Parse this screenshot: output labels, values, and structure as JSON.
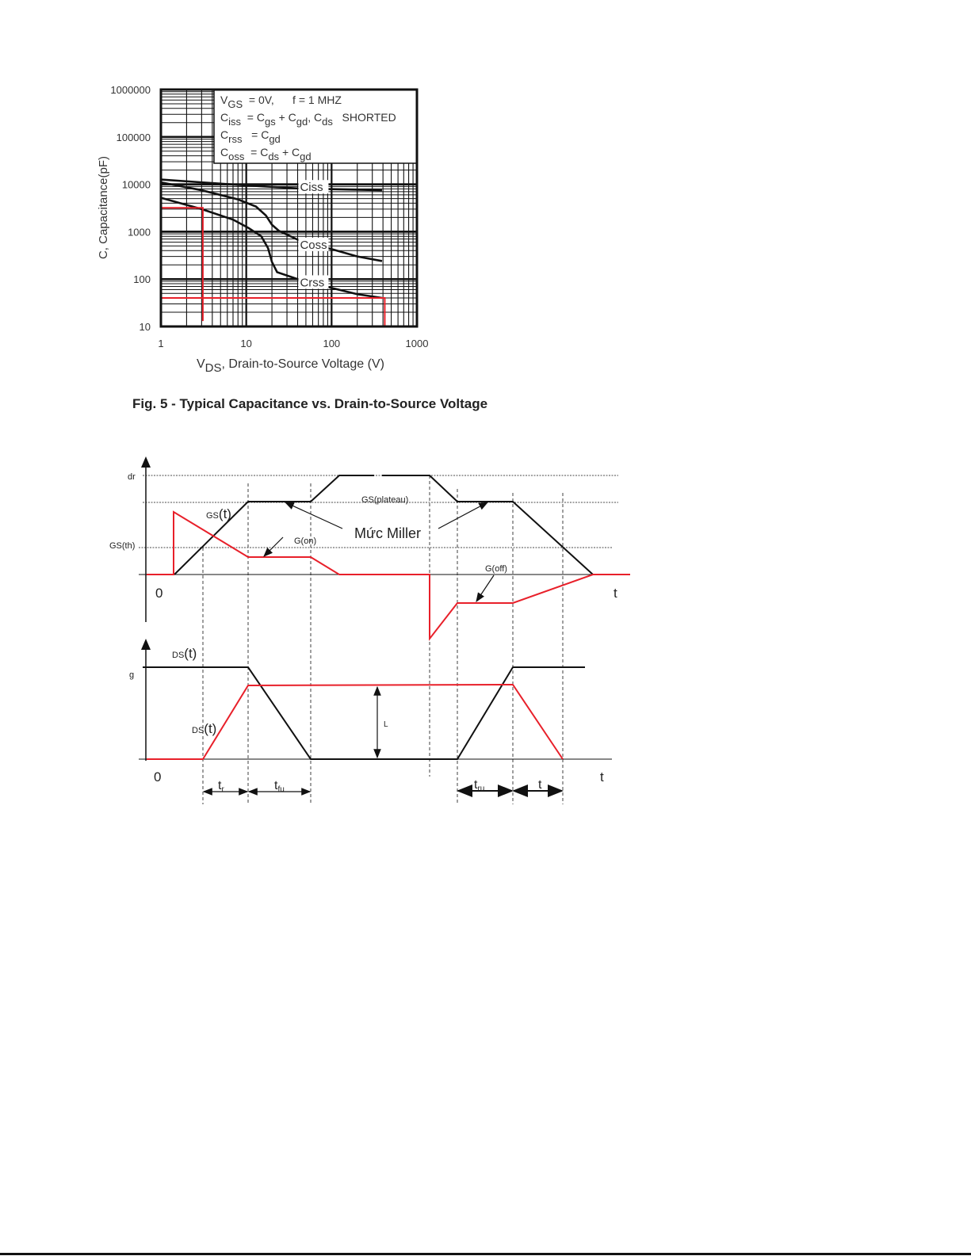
{
  "chart_data": {
    "type": "line",
    "title": "",
    "xlabel": {
      "main": "V",
      "sub": "DS",
      "rest": ", Drain-to-Source Voltage (V)"
    },
    "ylabel": "C, Capacitance(pF)",
    "xscale": "log",
    "yscale": "log",
    "xlim": [
      1,
      1000
    ],
    "ylim": [
      10,
      1000000
    ],
    "grid": true,
    "x_ticks": [
      "1",
      "10",
      "100",
      "1000"
    ],
    "y_ticks": [
      "10",
      "100",
      "1000",
      "10000",
      "100000",
      "1000000"
    ],
    "legend_lines": [
      [
        {
          "t": "V"
        },
        {
          "t": "GS",
          "sub": true
        },
        {
          "t": "  = 0V,      f = 1 MHZ"
        }
      ],
      [
        {
          "t": "C"
        },
        {
          "t": "iss",
          "sub": true
        },
        {
          "t": "  = C"
        },
        {
          "t": "gs",
          "sub": true
        },
        {
          "t": " + C"
        },
        {
          "t": "gd",
          "sub": true
        },
        {
          "t": ", C"
        },
        {
          "t": "ds",
          "sub": true
        },
        {
          "t": "   SHORTED"
        }
      ],
      [
        {
          "t": "C"
        },
        {
          "t": "rss",
          "sub": true
        },
        {
          "t": "   = C"
        },
        {
          "t": "gd",
          "sub": true
        }
      ],
      [
        {
          "t": "C"
        },
        {
          "t": "oss",
          "sub": true
        },
        {
          "t": "  = C"
        },
        {
          "t": "ds",
          "sub": true
        },
        {
          "t": " + C"
        },
        {
          "t": "gd",
          "sub": true
        }
      ]
    ],
    "legend_placement": "top-right",
    "series": [
      {
        "name": "Ciss",
        "color": "#111111",
        "points": [
          [
            1,
            12600
          ],
          [
            3,
            11000
          ],
          [
            10,
            9500
          ],
          [
            40,
            8200
          ],
          [
            100,
            7900
          ],
          [
            390,
            7500
          ]
        ]
      },
      {
        "name": "Coss",
        "color": "#111111",
        "points": [
          [
            1,
            11000
          ],
          [
            3,
            7500
          ],
          [
            8,
            4800
          ],
          [
            13,
            3400
          ],
          [
            17,
            2200
          ],
          [
            20,
            1400
          ],
          [
            24,
            1050
          ],
          [
            40,
            680
          ],
          [
            100,
            430
          ],
          [
            200,
            300
          ],
          [
            390,
            240
          ]
        ]
      },
      {
        "name": "Crss",
        "color": "#111111",
        "points": [
          [
            1,
            5200
          ],
          [
            3,
            3000
          ],
          [
            7,
            1800
          ],
          [
            10.6,
            1200
          ],
          [
            15,
            800
          ],
          [
            18,
            450
          ],
          [
            20,
            230
          ],
          [
            23,
            140
          ],
          [
            40,
            100
          ],
          [
            100,
            65
          ],
          [
            200,
            48
          ],
          [
            390,
            40
          ]
        ]
      }
    ],
    "annotations": [
      {
        "color": "#e8202a",
        "points": [
          [
            1,
            3200
          ],
          [
            3.1,
            3200
          ],
          [
            3.1,
            13
          ]
        ]
      },
      {
        "color": "#e8202a",
        "points": [
          [
            1,
            40
          ],
          [
            390,
            40
          ],
          [
            420,
            40
          ],
          [
            420,
            10
          ]
        ]
      }
    ]
  },
  "caption": "Fig. 5 - Typical Capacitance vs. Drain-to-Source Voltage",
  "diagram": {
    "labels": {
      "dr": "dr",
      "gs_th": "GS(th)",
      "gs_t_prefix": "GS",
      "gs_t_suffix": "(t)",
      "g_on": "G(on)",
      "gs_plateau": "GS(plateau)",
      "miller": "Mức Miller",
      "g_off": "G(off)",
      "zero_top": "0",
      "t_top": "t",
      "g": "g",
      "ds_t_prefix": "DS",
      "ds_t_suffix": "(t)",
      "ds_t2_prefix": "DS",
      "ds_t2_suffix": "(t)",
      "l": "L",
      "zero_bottom": "0",
      "t_bottom": "t",
      "tr_main": "t",
      "tr_sub": "r",
      "tfu_main": "t",
      "tfu_sub": "fu",
      "tru_main": "t",
      "tru_sub": "ru",
      "tf_main": "t"
    },
    "colors": {
      "voltage": "#111111",
      "current": "#e8202a"
    }
  }
}
